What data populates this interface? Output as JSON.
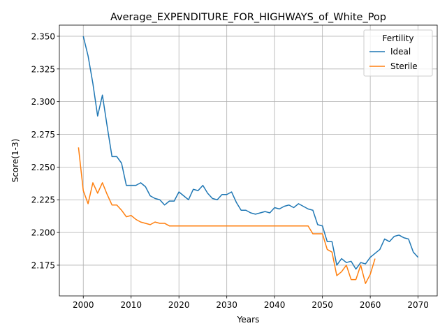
{
  "chart_data": {
    "type": "line",
    "title": "Average_EXPENDITURE_FOR_HIGHWAYS_of_White_Pop",
    "xlabel": "Years",
    "ylabel": "Score(1-3)",
    "xlim": [
      1995,
      2074
    ],
    "ylim": [
      2.1515,
      2.3585
    ],
    "xticks": [
      2000,
      2010,
      2020,
      2030,
      2040,
      2050,
      2060,
      2070
    ],
    "yticks": [
      2.175,
      2.2,
      2.225,
      2.25,
      2.275,
      2.3,
      2.325,
      2.35
    ],
    "ytick_labels": [
      "2.175",
      "2.200",
      "2.225",
      "2.250",
      "2.275",
      "2.300",
      "2.325",
      "2.350"
    ],
    "grid": true,
    "legend": {
      "title": "Fertility",
      "position": "top-right"
    },
    "series": [
      {
        "name": "Ideal",
        "color": "#1f77b4",
        "x": [
          2000,
          2001,
          2002,
          2003,
          2004,
          2005,
          2006,
          2007,
          2008,
          2009,
          2010,
          2011,
          2012,
          2013,
          2014,
          2015,
          2016,
          2017,
          2018,
          2019,
          2020,
          2021,
          2022,
          2023,
          2024,
          2025,
          2026,
          2027,
          2028,
          2029,
          2030,
          2031,
          2032,
          2033,
          2034,
          2035,
          2036,
          2037,
          2038,
          2039,
          2040,
          2041,
          2042,
          2043,
          2044,
          2045,
          2046,
          2047,
          2048,
          2049,
          2050,
          2051,
          2052,
          2053,
          2054,
          2055,
          2056,
          2057,
          2058,
          2059,
          2060,
          2061,
          2062,
          2063,
          2064,
          2065,
          2066,
          2067,
          2068,
          2069,
          2070
        ],
        "y": [
          2.35,
          2.335,
          2.314,
          2.289,
          2.305,
          2.281,
          2.258,
          2.258,
          2.253,
          2.236,
          2.236,
          2.236,
          2.238,
          2.235,
          2.228,
          2.226,
          2.225,
          2.221,
          2.224,
          2.224,
          2.231,
          2.228,
          2.225,
          2.233,
          2.232,
          2.236,
          2.23,
          2.226,
          2.225,
          2.229,
          2.229,
          2.231,
          2.223,
          2.217,
          2.217,
          2.215,
          2.214,
          2.215,
          2.216,
          2.215,
          2.219,
          2.218,
          2.22,
          2.221,
          2.219,
          2.222,
          2.22,
          2.218,
          2.217,
          2.206,
          2.205,
          2.193,
          2.193,
          2.175,
          2.18,
          2.177,
          2.178,
          2.172,
          2.177,
          2.176,
          2.181,
          2.184,
          2.187,
          2.195,
          2.193,
          2.197,
          2.198,
          2.196,
          2.195,
          2.185,
          2.181
        ]
      },
      {
        "name": "Sterile",
        "color": "#ff7f0e",
        "x": [
          1999,
          2000,
          2001,
          2002,
          2003,
          2004,
          2005,
          2006,
          2007,
          2008,
          2009,
          2010,
          2011,
          2012,
          2013,
          2014,
          2015,
          2016,
          2017,
          2018,
          2019,
          2020,
          2021,
          2022,
          2023,
          2024,
          2025,
          2026,
          2027,
          2028,
          2029,
          2030,
          2031,
          2032,
          2033,
          2034,
          2035,
          2036,
          2037,
          2038,
          2039,
          2040,
          2041,
          2042,
          2043,
          2044,
          2045,
          2046,
          2047,
          2048,
          2049,
          2050,
          2051,
          2052,
          2053,
          2054,
          2055,
          2056,
          2057,
          2058,
          2059,
          2060,
          2061
        ],
        "y": [
          2.265,
          2.232,
          2.222,
          2.238,
          2.23,
          2.238,
          2.229,
          2.221,
          2.221,
          2.217,
          2.212,
          2.213,
          2.21,
          2.208,
          2.207,
          2.206,
          2.208,
          2.207,
          2.207,
          2.205,
          2.205,
          2.205,
          2.205,
          2.205,
          2.205,
          2.205,
          2.205,
          2.205,
          2.205,
          2.205,
          2.205,
          2.205,
          2.205,
          2.205,
          2.205,
          2.205,
          2.205,
          2.205,
          2.205,
          2.205,
          2.205,
          2.205,
          2.205,
          2.205,
          2.205,
          2.205,
          2.205,
          2.205,
          2.205,
          2.199,
          2.199,
          2.199,
          2.187,
          2.185,
          2.167,
          2.17,
          2.175,
          2.164,
          2.164,
          2.175,
          2.161,
          2.168,
          2.18
        ]
      }
    ]
  }
}
